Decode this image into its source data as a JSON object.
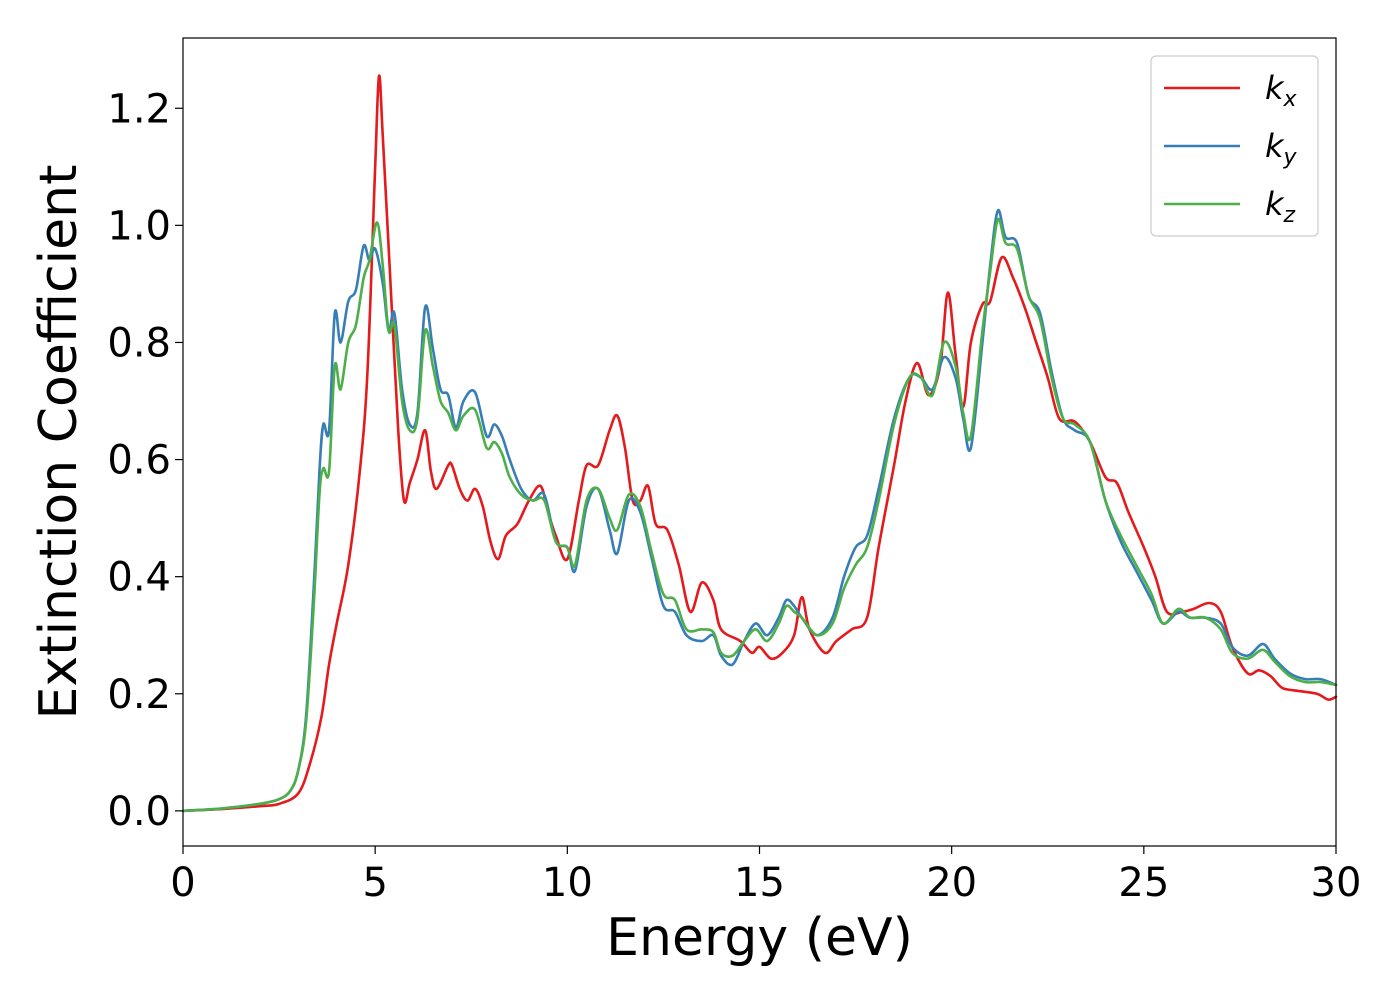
{
  "chart_data": {
    "type": "line",
    "xlabel": "Energy (eV)",
    "ylabel": "Extinction Coefficient",
    "xlim": [
      0,
      30
    ],
    "ylim": [
      -0.06,
      1.32
    ],
    "xticks": [
      0,
      5,
      10,
      15,
      20,
      25,
      30
    ],
    "yticks": [
      0.0,
      0.2,
      0.4,
      0.6,
      0.8,
      1.0,
      1.2
    ],
    "xtick_labels": [
      "0",
      "5",
      "10",
      "15",
      "20",
      "25",
      "30"
    ],
    "ytick_labels": [
      "0.0",
      "0.2",
      "0.4",
      "0.6",
      "0.8",
      "1.0",
      "1.2"
    ],
    "grid": false,
    "legend_position": "top-right",
    "series": [
      {
        "name": "k_x",
        "label_main": "k",
        "label_sub": "x",
        "color": "#e41a1c",
        "points": [
          [
            0,
            0.0
          ],
          [
            1,
            0.003
          ],
          [
            2,
            0.008
          ],
          [
            2.5,
            0.012
          ],
          [
            3.0,
            0.03
          ],
          [
            3.3,
            0.08
          ],
          [
            3.6,
            0.16
          ],
          [
            3.8,
            0.25
          ],
          [
            4.0,
            0.32
          ],
          [
            4.3,
            0.42
          ],
          [
            4.6,
            0.58
          ],
          [
            4.8,
            0.75
          ],
          [
            5.0,
            1.1
          ],
          [
            5.1,
            1.255
          ],
          [
            5.2,
            1.15
          ],
          [
            5.4,
            0.9
          ],
          [
            5.6,
            0.65
          ],
          [
            5.75,
            0.53
          ],
          [
            5.9,
            0.56
          ],
          [
            6.1,
            0.6
          ],
          [
            6.3,
            0.65
          ],
          [
            6.45,
            0.58
          ],
          [
            6.6,
            0.55
          ],
          [
            6.9,
            0.59
          ],
          [
            7.0,
            0.59
          ],
          [
            7.2,
            0.55
          ],
          [
            7.4,
            0.53
          ],
          [
            7.6,
            0.55
          ],
          [
            7.8,
            0.52
          ],
          [
            8.0,
            0.46
          ],
          [
            8.2,
            0.43
          ],
          [
            8.4,
            0.47
          ],
          [
            8.7,
            0.49
          ],
          [
            9.0,
            0.53
          ],
          [
            9.3,
            0.555
          ],
          [
            9.5,
            0.51
          ],
          [
            9.7,
            0.47
          ],
          [
            10.0,
            0.43
          ],
          [
            10.3,
            0.53
          ],
          [
            10.5,
            0.59
          ],
          [
            10.8,
            0.59
          ],
          [
            11.1,
            0.65
          ],
          [
            11.3,
            0.675
          ],
          [
            11.5,
            0.62
          ],
          [
            11.7,
            0.53
          ],
          [
            11.9,
            0.53
          ],
          [
            12.1,
            0.555
          ],
          [
            12.3,
            0.49
          ],
          [
            12.6,
            0.48
          ],
          [
            12.9,
            0.42
          ],
          [
            13.2,
            0.34
          ],
          [
            13.5,
            0.39
          ],
          [
            13.8,
            0.36
          ],
          [
            14.0,
            0.31
          ],
          [
            14.5,
            0.29
          ],
          [
            14.8,
            0.27
          ],
          [
            15.0,
            0.28
          ],
          [
            15.3,
            0.26
          ],
          [
            15.6,
            0.27
          ],
          [
            15.9,
            0.3
          ],
          [
            16.1,
            0.365
          ],
          [
            16.3,
            0.31
          ],
          [
            16.7,
            0.27
          ],
          [
            17.0,
            0.29
          ],
          [
            17.4,
            0.31
          ],
          [
            17.8,
            0.33
          ],
          [
            18.1,
            0.45
          ],
          [
            18.5,
            0.59
          ],
          [
            18.8,
            0.7
          ],
          [
            19.1,
            0.765
          ],
          [
            19.4,
            0.71
          ],
          [
            19.7,
            0.76
          ],
          [
            19.9,
            0.885
          ],
          [
            20.1,
            0.78
          ],
          [
            20.3,
            0.69
          ],
          [
            20.5,
            0.8
          ],
          [
            20.8,
            0.865
          ],
          [
            21.0,
            0.87
          ],
          [
            21.3,
            0.945
          ],
          [
            21.6,
            0.91
          ],
          [
            21.9,
            0.86
          ],
          [
            22.2,
            0.8
          ],
          [
            22.5,
            0.74
          ],
          [
            22.8,
            0.67
          ],
          [
            23.2,
            0.665
          ],
          [
            23.6,
            0.63
          ],
          [
            24.0,
            0.57
          ],
          [
            24.3,
            0.56
          ],
          [
            24.6,
            0.51
          ],
          [
            25.0,
            0.45
          ],
          [
            25.3,
            0.4
          ],
          [
            25.6,
            0.34
          ],
          [
            26.0,
            0.34
          ],
          [
            26.3,
            0.345
          ],
          [
            26.7,
            0.355
          ],
          [
            27.0,
            0.34
          ],
          [
            27.3,
            0.28
          ],
          [
            27.7,
            0.235
          ],
          [
            28.0,
            0.24
          ],
          [
            28.3,
            0.23
          ],
          [
            28.6,
            0.21
          ],
          [
            29.0,
            0.205
          ],
          [
            29.5,
            0.2
          ],
          [
            29.8,
            0.19
          ],
          [
            30.0,
            0.195
          ]
        ]
      },
      {
        "name": "k_y",
        "label_main": "k",
        "label_sub": "y",
        "color": "#377eb8",
        "points": [
          [
            0,
            0.0
          ],
          [
            1,
            0.004
          ],
          [
            2,
            0.012
          ],
          [
            2.5,
            0.02
          ],
          [
            2.8,
            0.035
          ],
          [
            3.0,
            0.07
          ],
          [
            3.2,
            0.16
          ],
          [
            3.4,
            0.38
          ],
          [
            3.55,
            0.58
          ],
          [
            3.65,
            0.66
          ],
          [
            3.8,
            0.65
          ],
          [
            3.95,
            0.85
          ],
          [
            4.1,
            0.8
          ],
          [
            4.3,
            0.87
          ],
          [
            4.5,
            0.89
          ],
          [
            4.7,
            0.965
          ],
          [
            4.85,
            0.94
          ],
          [
            5.0,
            0.96
          ],
          [
            5.2,
            0.9
          ],
          [
            5.35,
            0.82
          ],
          [
            5.5,
            0.85
          ],
          [
            5.7,
            0.72
          ],
          [
            5.9,
            0.66
          ],
          [
            6.1,
            0.68
          ],
          [
            6.3,
            0.86
          ],
          [
            6.5,
            0.79
          ],
          [
            6.7,
            0.72
          ],
          [
            6.9,
            0.71
          ],
          [
            7.1,
            0.655
          ],
          [
            7.3,
            0.7
          ],
          [
            7.6,
            0.715
          ],
          [
            7.9,
            0.64
          ],
          [
            8.1,
            0.66
          ],
          [
            8.3,
            0.64
          ],
          [
            8.5,
            0.6
          ],
          [
            8.8,
            0.55
          ],
          [
            9.1,
            0.53
          ],
          [
            9.4,
            0.54
          ],
          [
            9.7,
            0.46
          ],
          [
            10.0,
            0.45
          ],
          [
            10.2,
            0.41
          ],
          [
            10.5,
            0.52
          ],
          [
            10.8,
            0.55
          ],
          [
            11.1,
            0.48
          ],
          [
            11.3,
            0.44
          ],
          [
            11.6,
            0.53
          ],
          [
            11.9,
            0.51
          ],
          [
            12.2,
            0.43
          ],
          [
            12.5,
            0.35
          ],
          [
            12.8,
            0.34
          ],
          [
            13.1,
            0.3
          ],
          [
            13.5,
            0.29
          ],
          [
            13.8,
            0.3
          ],
          [
            14.0,
            0.265
          ],
          [
            14.3,
            0.25
          ],
          [
            14.6,
            0.29
          ],
          [
            14.9,
            0.32
          ],
          [
            15.2,
            0.3
          ],
          [
            15.5,
            0.33
          ],
          [
            15.7,
            0.36
          ],
          [
            15.9,
            0.35
          ],
          [
            16.1,
            0.33
          ],
          [
            16.5,
            0.3
          ],
          [
            16.9,
            0.33
          ],
          [
            17.2,
            0.4
          ],
          [
            17.5,
            0.45
          ],
          [
            17.8,
            0.47
          ],
          [
            18.1,
            0.55
          ],
          [
            18.5,
            0.67
          ],
          [
            18.9,
            0.74
          ],
          [
            19.2,
            0.74
          ],
          [
            19.5,
            0.72
          ],
          [
            19.8,
            0.775
          ],
          [
            20.1,
            0.74
          ],
          [
            20.3,
            0.67
          ],
          [
            20.5,
            0.62
          ],
          [
            20.8,
            0.8
          ],
          [
            21.0,
            0.93
          ],
          [
            21.2,
            1.025
          ],
          [
            21.4,
            0.98
          ],
          [
            21.7,
            0.97
          ],
          [
            22.0,
            0.88
          ],
          [
            22.3,
            0.85
          ],
          [
            22.6,
            0.75
          ],
          [
            22.9,
            0.67
          ],
          [
            23.2,
            0.65
          ],
          [
            23.6,
            0.63
          ],
          [
            24.0,
            0.53
          ],
          [
            24.4,
            0.46
          ],
          [
            24.8,
            0.41
          ],
          [
            25.2,
            0.36
          ],
          [
            25.5,
            0.32
          ],
          [
            25.9,
            0.34
          ],
          [
            26.2,
            0.33
          ],
          [
            26.6,
            0.33
          ],
          [
            27.0,
            0.32
          ],
          [
            27.3,
            0.28
          ],
          [
            27.7,
            0.265
          ],
          [
            28.1,
            0.285
          ],
          [
            28.4,
            0.26
          ],
          [
            28.8,
            0.235
          ],
          [
            29.2,
            0.225
          ],
          [
            29.6,
            0.225
          ],
          [
            30.0,
            0.215
          ]
        ]
      },
      {
        "name": "k_z",
        "label_main": "k",
        "label_sub": "z",
        "color": "#4daf4a",
        "points": [
          [
            0,
            0.0
          ],
          [
            1,
            0.004
          ],
          [
            2,
            0.012
          ],
          [
            2.5,
            0.02
          ],
          [
            2.8,
            0.035
          ],
          [
            3.0,
            0.07
          ],
          [
            3.2,
            0.15
          ],
          [
            3.4,
            0.35
          ],
          [
            3.55,
            0.54
          ],
          [
            3.65,
            0.585
          ],
          [
            3.8,
            0.58
          ],
          [
            3.95,
            0.76
          ],
          [
            4.1,
            0.72
          ],
          [
            4.3,
            0.8
          ],
          [
            4.5,
            0.83
          ],
          [
            4.7,
            0.91
          ],
          [
            4.85,
            0.94
          ],
          [
            5.05,
            1.005
          ],
          [
            5.2,
            0.93
          ],
          [
            5.35,
            0.82
          ],
          [
            5.5,
            0.83
          ],
          [
            5.7,
            0.7
          ],
          [
            5.9,
            0.65
          ],
          [
            6.1,
            0.67
          ],
          [
            6.3,
            0.82
          ],
          [
            6.5,
            0.76
          ],
          [
            6.7,
            0.7
          ],
          [
            6.9,
            0.68
          ],
          [
            7.1,
            0.65
          ],
          [
            7.3,
            0.675
          ],
          [
            7.6,
            0.685
          ],
          [
            7.9,
            0.62
          ],
          [
            8.1,
            0.63
          ],
          [
            8.3,
            0.61
          ],
          [
            8.5,
            0.57
          ],
          [
            8.8,
            0.54
          ],
          [
            9.1,
            0.53
          ],
          [
            9.4,
            0.53
          ],
          [
            9.7,
            0.46
          ],
          [
            10.0,
            0.45
          ],
          [
            10.2,
            0.42
          ],
          [
            10.5,
            0.53
          ],
          [
            10.8,
            0.55
          ],
          [
            11.1,
            0.5
          ],
          [
            11.3,
            0.48
          ],
          [
            11.6,
            0.54
          ],
          [
            11.9,
            0.52
          ],
          [
            12.2,
            0.44
          ],
          [
            12.5,
            0.37
          ],
          [
            12.8,
            0.36
          ],
          [
            13.1,
            0.31
          ],
          [
            13.5,
            0.31
          ],
          [
            13.8,
            0.305
          ],
          [
            14.0,
            0.27
          ],
          [
            14.3,
            0.265
          ],
          [
            14.6,
            0.29
          ],
          [
            14.9,
            0.31
          ],
          [
            15.2,
            0.29
          ],
          [
            15.5,
            0.32
          ],
          [
            15.7,
            0.35
          ],
          [
            15.9,
            0.34
          ],
          [
            16.1,
            0.33
          ],
          [
            16.5,
            0.3
          ],
          [
            16.9,
            0.32
          ],
          [
            17.2,
            0.38
          ],
          [
            17.5,
            0.42
          ],
          [
            17.8,
            0.45
          ],
          [
            18.1,
            0.53
          ],
          [
            18.5,
            0.66
          ],
          [
            18.9,
            0.74
          ],
          [
            19.2,
            0.74
          ],
          [
            19.5,
            0.71
          ],
          [
            19.8,
            0.8
          ],
          [
            20.1,
            0.76
          ],
          [
            20.3,
            0.68
          ],
          [
            20.5,
            0.64
          ],
          [
            20.8,
            0.82
          ],
          [
            21.0,
            0.92
          ],
          [
            21.2,
            1.01
          ],
          [
            21.4,
            0.97
          ],
          [
            21.7,
            0.96
          ],
          [
            22.0,
            0.88
          ],
          [
            22.3,
            0.84
          ],
          [
            22.6,
            0.74
          ],
          [
            22.9,
            0.67
          ],
          [
            23.2,
            0.66
          ],
          [
            23.6,
            0.63
          ],
          [
            24.0,
            0.53
          ],
          [
            24.4,
            0.47
          ],
          [
            24.8,
            0.42
          ],
          [
            25.2,
            0.37
          ],
          [
            25.5,
            0.32
          ],
          [
            25.9,
            0.345
          ],
          [
            26.2,
            0.33
          ],
          [
            26.6,
            0.33
          ],
          [
            27.0,
            0.31
          ],
          [
            27.3,
            0.27
          ],
          [
            27.7,
            0.26
          ],
          [
            28.1,
            0.275
          ],
          [
            28.4,
            0.255
          ],
          [
            28.8,
            0.23
          ],
          [
            29.2,
            0.22
          ],
          [
            29.6,
            0.22
          ],
          [
            30.0,
            0.215
          ]
        ]
      }
    ]
  }
}
